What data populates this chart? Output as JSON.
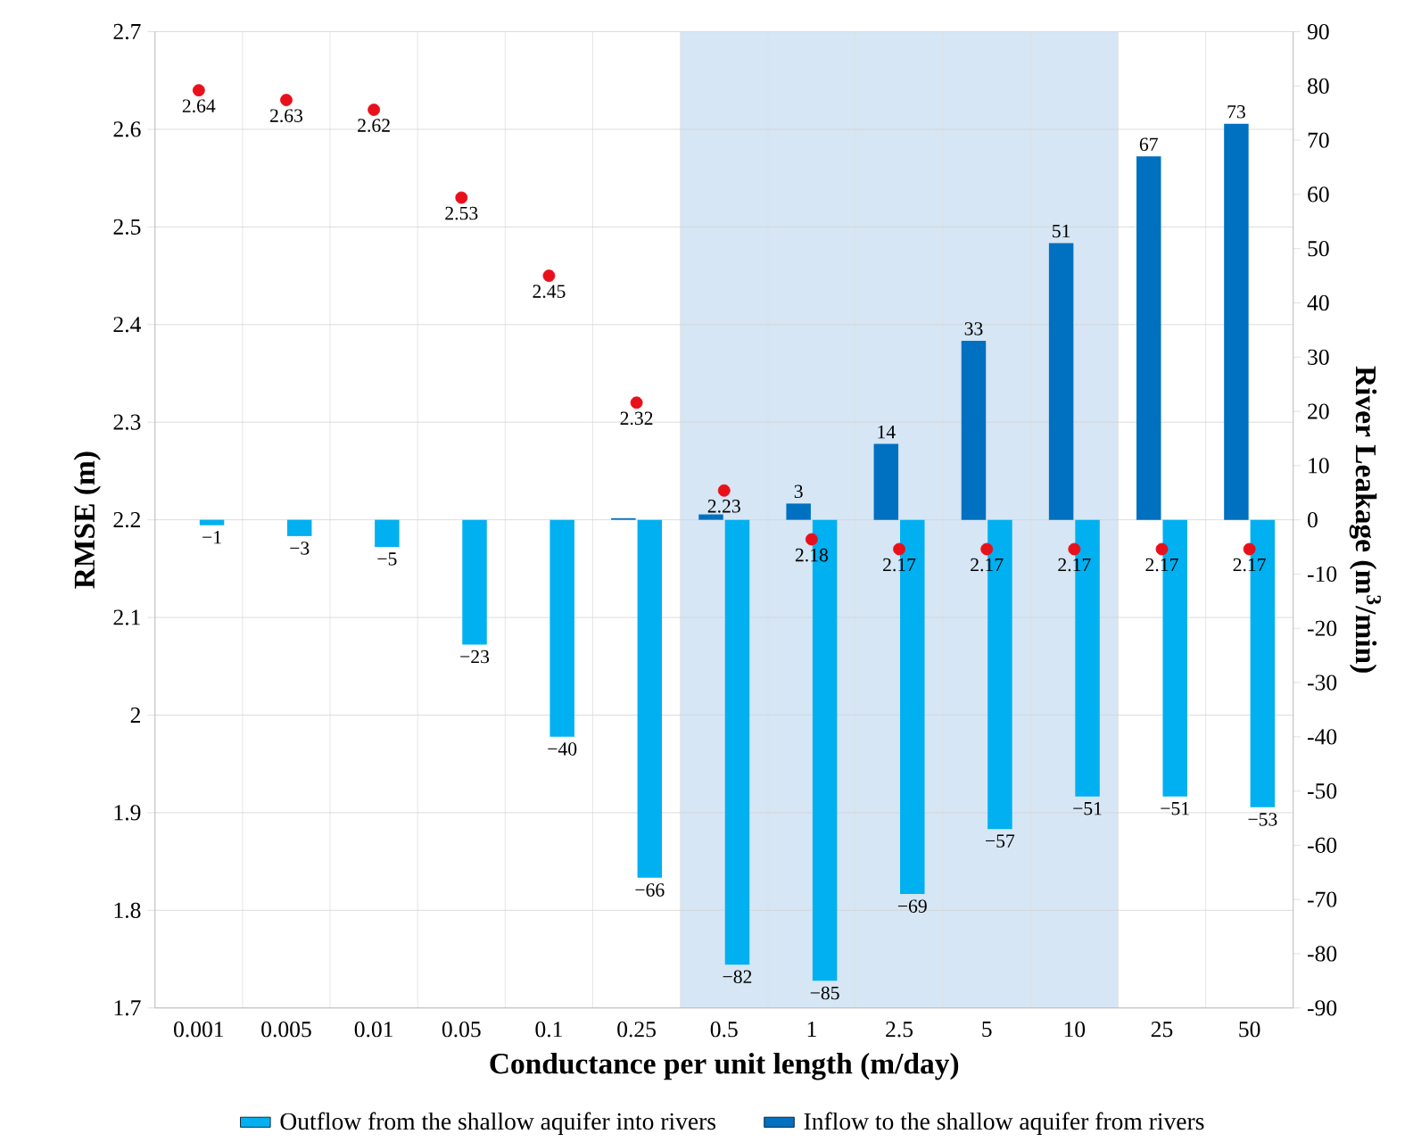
{
  "chart_data": {
    "type": "bar",
    "xlabel": "Conductance per unit length (m/day)",
    "ylabel": "RMSE (m)",
    "y2label": "River Leakage (m$^{3}$/min)",
    "categories": [
      "0.001",
      "0.005",
      "0.01",
      "0.05",
      "0.1",
      "0.25",
      "0.5",
      "1",
      "2.5",
      "5",
      "10",
      "25",
      "50"
    ],
    "series": [
      {
        "name": "Outflow from the shallow aquifer into rivers",
        "axis": "y2",
        "color": "#00b0f0",
        "values": [
          -1,
          -3,
          -5,
          -23,
          -40,
          -66,
          -82,
          -85,
          -69,
          -57,
          -51,
          -51,
          -53
        ],
        "value_labels": [
          "−1",
          "−3",
          "−5",
          "−23",
          "−40",
          "−66",
          "−82",
          "−85",
          "−69",
          "−57",
          "−51",
          "−51",
          "−53"
        ]
      },
      {
        "name": "Inflow to the shallow aquifer from rivers",
        "axis": "y2",
        "color": "#0070c0",
        "values": [
          null,
          null,
          null,
          null,
          null,
          0.3,
          1,
          3,
          14,
          33,
          51,
          67,
          73
        ],
        "value_labels": [
          null,
          null,
          null,
          null,
          null,
          null,
          null,
          "3",
          "14",
          "33",
          "51",
          "67",
          "73"
        ]
      },
      {
        "type": "scatter",
        "color": "#e8101a",
        "marker": "circle",
        "values": [
          2.64,
          2.63,
          2.62,
          2.53,
          2.45,
          2.32,
          2.23,
          2.18,
          2.17,
          2.17,
          2.17,
          2.17,
          2.17
        ],
        "value_labels": [
          "2.64",
          "2.63",
          "2.62",
          "2.53",
          "2.45",
          "2.32",
          "2.23",
          "2.18",
          "2.17",
          "2.17",
          "2.17",
          "2.17",
          "2.17"
        ]
      }
    ],
    "ylim": [
      1.7,
      2.7
    ],
    "yticks": [
      1.7,
      1.8,
      1.9,
      2,
      2.1,
      2.2,
      2.3,
      2.4,
      2.5,
      2.6,
      2.7
    ],
    "y2lim": [
      -90,
      90
    ],
    "y2ticks": [
      -90,
      -80,
      -70,
      -60,
      -50,
      -40,
      -30,
      -20,
      -10,
      0,
      10,
      20,
      30,
      40,
      50,
      60,
      70,
      80,
      90
    ],
    "bands": [
      {
        "axis": "x",
        "from": "0.5",
        "to": "10",
        "color": "#d6e6f5"
      }
    ],
    "grid": true,
    "legend": "bottom"
  }
}
